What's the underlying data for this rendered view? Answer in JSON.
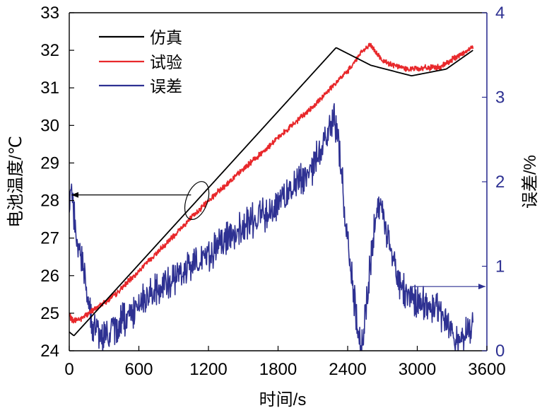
{
  "chart_data": {
    "type": "line",
    "title": "",
    "xlabel": "时间/s",
    "ylabel_left": "电池温度/℃",
    "ylabel_right": "误差/%",
    "xlim": [
      0,
      3600
    ],
    "ylim_left": [
      24,
      33
    ],
    "ylim_right": [
      0,
      4
    ],
    "x_ticks": [
      "0",
      "600",
      "1200",
      "1800",
      "2400",
      "3000",
      "3600"
    ],
    "y_left_ticks": [
      "24",
      "25",
      "26",
      "27",
      "28",
      "29",
      "30",
      "31",
      "32",
      "33"
    ],
    "y_right_ticks": [
      "0",
      "1",
      "2",
      "3",
      "4"
    ],
    "legend_position": "top-left",
    "colors": {
      "sim": "#000000",
      "exp": "#e8282b",
      "err": "#2e3192",
      "right_axis": "#2e3192"
    },
    "series": [
      {
        "name": "仿真",
        "axis": "left",
        "color": "#000000",
        "x": [
          0,
          40,
          2300,
          2600,
          2950,
          3250,
          3480
        ],
        "y": [
          24.5,
          24.4,
          32.07,
          31.6,
          31.32,
          31.5,
          32.0
        ]
      },
      {
        "name": "试验",
        "axis": "left",
        "color": "#e8282b",
        "x": [
          0,
          30,
          100,
          400,
          1200,
          2100,
          2400,
          2520,
          2600,
          2700,
          2900,
          3200,
          3480
        ],
        "y": [
          24.95,
          24.8,
          24.85,
          25.5,
          28.0,
          30.5,
          31.45,
          31.95,
          32.15,
          31.7,
          31.5,
          31.55,
          32.1
        ]
      },
      {
        "name": "误差",
        "axis": "right",
        "color": "#2e3192",
        "x": [
          0,
          15,
          60,
          120,
          200,
          300,
          600,
          1000,
          1400,
          1800,
          2100,
          2200,
          2280,
          2320,
          2400,
          2480,
          2520,
          2560,
          2620,
          2680,
          2750,
          2850,
          3000,
          3200,
          3300,
          3350,
          3450,
          3480
        ],
        "y": [
          1.6,
          2.1,
          1.3,
          1.0,
          0.3,
          0.15,
          0.55,
          0.95,
          1.35,
          1.75,
          2.15,
          2.5,
          2.75,
          2.5,
          1.3,
          0.35,
          0.05,
          0.5,
          1.35,
          1.8,
          1.35,
          0.75,
          0.6,
          0.45,
          0.25,
          0.1,
          0.25,
          0.35
        ]
      }
    ],
    "annotations": [
      {
        "type": "ellipse",
        "around": "仿真/试验 near x≈1100",
        "x": 1100,
        "y": 28.0
      },
      {
        "type": "arrow",
        "label": "points to left axis",
        "from_x": 1050,
        "to_x": 0,
        "y": 28.15
      },
      {
        "type": "arrow",
        "label": "points to right axis",
        "from_x": 2950,
        "to_x": 3600,
        "y_right": 0.76
      }
    ]
  }
}
